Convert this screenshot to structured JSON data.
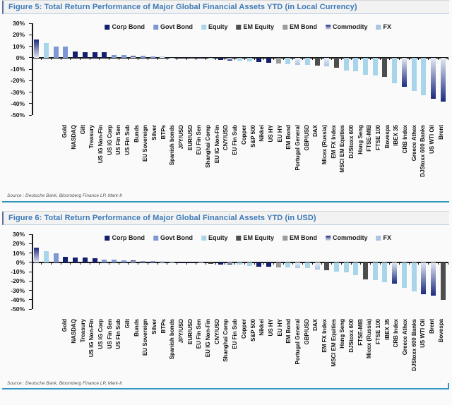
{
  "page": {
    "background": "#fafafa"
  },
  "category_colors": {
    "corp_bond": "#141f6e",
    "govt_bond": "#7d98d2",
    "equity": "#a9d5ea",
    "em_equity": "#4d4d4d",
    "em_bond": "#9b9b9b",
    "commodity": "#1b2a7e",
    "commodity_light": "#e4e9f4",
    "fx": "#aac4e2",
    "fx_light": "#e7eef7",
    "axis": "#1a1a1a",
    "title_text": "#3d7ab8",
    "separator": "#2e96ba"
  },
  "chart_data": [
    {
      "type": "bar",
      "title": "Figure 5: Total Return Performance of Major Global Financial Assets YTD (in Local Currency)",
      "source": "Source : Deutsche Bank, Bloomberg Finance LP, Mark-It",
      "ylim": [
        -50,
        30
      ],
      "grid": false,
      "legend_position": "top",
      "yticks": [
        "30%",
        "20%",
        "10%",
        "0%",
        "-10%",
        "-20%",
        "-30%",
        "-40%",
        "-50%"
      ],
      "legend": [
        "Corp Bond",
        "Govt Bond",
        "Equity",
        "EM Equity",
        "EM Bond",
        "Commodity",
        "FX"
      ],
      "legend_keys": [
        "corp_bond",
        "govt_bond",
        "equity",
        "em_equity",
        "em_bond",
        "commodity",
        "fx"
      ],
      "categories": [
        "Gold",
        "NASDAQ",
        "Gilt",
        "Treasury",
        "US IG Non-Fin",
        "US IG Corp",
        "US Fin Sen",
        "US Fin Sub",
        "Bunds",
        "EU Sovereign",
        "Silver",
        "BTPs",
        "Spanish bonds",
        "JPY/USD",
        "EUR/USD",
        "EU Fin Sen",
        "Shanghai Comp",
        "EU IG Non-Fin",
        "CNY/USD",
        "EU Fin Sub",
        "Copper",
        "S&P 500",
        "Nikkei",
        "US HY",
        "EU HY",
        "EM Bond",
        "Portugal General",
        "GBP/USD",
        "DAX",
        "Micex (Russia)",
        "EM FX Index",
        "MSCI EM Equities",
        "DJStoxx 600",
        "Hang Seng",
        "FTSE-MIB",
        "FTSE 100",
        "Bovespa",
        "IBEX 35",
        "CRB Index",
        "Greece Athex",
        "DJStoxx 600 Banks",
        "US WTI Oil",
        "Brent"
      ],
      "values": [
        16,
        12.5,
        10,
        9.5,
        5.5,
        5,
        5,
        4.5,
        2.5,
        2.2,
        2,
        1.5,
        1.2,
        1,
        -0.3,
        -0.6,
        -0.8,
        -1,
        -1.5,
        -2.2,
        -2.4,
        -2.6,
        -3.5,
        -4,
        -4.5,
        -5,
        -5.5,
        -6,
        -6.5,
        -7,
        -7.5,
        -9,
        -11,
        -12,
        -15,
        -15.5,
        -16.5,
        -22,
        -25.5,
        -29,
        -33,
        -36,
        -38
      ],
      "classes": [
        "commodity",
        "equity",
        "govt_bond",
        "govt_bond",
        "corp_bond",
        "corp_bond",
        "corp_bond",
        "corp_bond",
        "govt_bond",
        "govt_bond",
        "commodity",
        "govt_bond",
        "govt_bond",
        "fx",
        "fx",
        "corp_bond",
        "em_equity",
        "corp_bond",
        "fx",
        "corp_bond",
        "commodity",
        "equity",
        "equity",
        "corp_bond",
        "corp_bond",
        "em_bond",
        "equity",
        "fx",
        "equity",
        "em_equity",
        "fx",
        "em_equity",
        "equity",
        "equity",
        "equity",
        "equity",
        "em_equity",
        "equity",
        "commodity",
        "equity",
        "equity",
        "commodity",
        "commodity"
      ]
    },
    {
      "type": "bar",
      "title": "Figure 6: Total Return Performance of Major Global Financial Assets YTD (in USD)",
      "source": "Source : Deutsche Bank, Bloomberg Finance LP, Mark-It",
      "ylim": [
        -50,
        30
      ],
      "grid": false,
      "legend_position": "top",
      "yticks": [
        "30%",
        "20%",
        "10%",
        "0%",
        "-10%",
        "-20%",
        "-30%",
        "-40%",
        "-50%"
      ],
      "legend": [
        "Corp Bond",
        "Govt Bond",
        "Equity",
        "EM Equity",
        "EM Bond",
        "Commodity",
        "FX"
      ],
      "legend_keys": [
        "corp_bond",
        "govt_bond",
        "equity",
        "em_equity",
        "em_bond",
        "commodity",
        "fx"
      ],
      "categories": [
        "Gold",
        "NASDAQ",
        "Treasury",
        "US IG Non-Fin",
        "US IG Corp",
        "US Fin Sen",
        "US Fin Sub",
        "Gilt",
        "Bunds",
        "EU Sovereign",
        "Silver",
        "BTPs",
        "Spanish bonds",
        "JPY/USD",
        "EUR/USD",
        "EU Fin Sen",
        "EU IG Non-Fin",
        "CNY/USD",
        "Shanghai Comp",
        "EU Fin Sub",
        "Copper",
        "S&P 500",
        "Nikkei",
        "US HY",
        "EU HY",
        "EM Bond",
        "Portugal General",
        "GBP/USD",
        "DAX",
        "EM FX Index",
        "MSCI EM Equities",
        "Hang Seng",
        "DJStoxx 600",
        "FTSE-MIB",
        "Micex (Russia)",
        "FTSE 100",
        "IBEX 35",
        "CRB Index",
        "Greece Athex",
        "DJStoxx 600 Banks",
        "US WTI Oil",
        "Brent",
        "Bovespa"
      ],
      "values": [
        16,
        12,
        9.5,
        5.5,
        5.2,
        5,
        4.5,
        3,
        2.5,
        2.2,
        2,
        1.5,
        1.2,
        1,
        -0.3,
        -0.6,
        -1,
        -1.3,
        -1.6,
        -2.2,
        -2.4,
        -2.8,
        -3.8,
        -4.5,
        -5,
        -5.2,
        -5.5,
        -6,
        -6.5,
        -8,
        -8.5,
        -10,
        -11,
        -14,
        -18,
        -19,
        -21.5,
        -23,
        -27,
        -31,
        -34,
        -36,
        -40
      ],
      "classes": [
        "commodity",
        "equity",
        "govt_bond",
        "corp_bond",
        "corp_bond",
        "corp_bond",
        "corp_bond",
        "govt_bond",
        "govt_bond",
        "govt_bond",
        "commodity",
        "govt_bond",
        "govt_bond",
        "fx",
        "fx",
        "corp_bond",
        "corp_bond",
        "fx",
        "em_equity",
        "corp_bond",
        "commodity",
        "equity",
        "equity",
        "corp_bond",
        "corp_bond",
        "em_bond",
        "equity",
        "fx",
        "equity",
        "fx",
        "em_equity",
        "equity",
        "equity",
        "equity",
        "em_equity",
        "equity",
        "equity",
        "commodity",
        "equity",
        "equity",
        "commodity",
        "commodity",
        "em_equity"
      ]
    }
  ]
}
